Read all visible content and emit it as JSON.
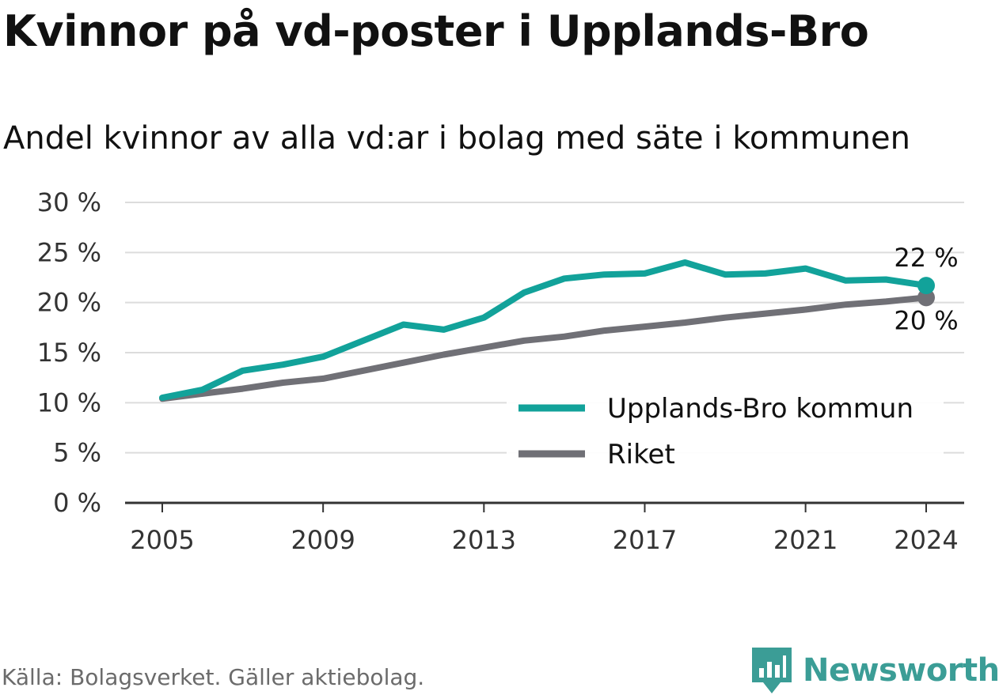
{
  "title": "Kvinnor på vd-poster i Upplands-Bro",
  "subtitle": "Andel kvinnor av alla vd:ar i bolag med säte i kommunen",
  "source": "Källa: Bolagsverket. Gäller aktiebolag.",
  "brand": {
    "name": "Newsworthy",
    "icon": "newsworthy-logo-icon",
    "color": "#3b9d96"
  },
  "chart_data": {
    "type": "line",
    "x": [
      2005,
      2006,
      2007,
      2008,
      2009,
      2010,
      2011,
      2012,
      2013,
      2014,
      2015,
      2016,
      2017,
      2018,
      2019,
      2020,
      2021,
      2022,
      2023,
      2024
    ],
    "series": [
      {
        "name": "Upplands-Bro kommun",
        "color": "#12a29a",
        "values": [
          10.5,
          11.3,
          13.2,
          13.8,
          14.6,
          16.2,
          17.8,
          17.3,
          18.5,
          21.0,
          22.4,
          22.8,
          22.9,
          24.0,
          22.8,
          22.9,
          23.4,
          22.2,
          22.3,
          21.7
        ],
        "end_label": "22 %"
      },
      {
        "name": "Riket",
        "color": "#707076",
        "values": [
          10.4,
          10.9,
          11.4,
          12.0,
          12.4,
          13.2,
          14.0,
          14.8,
          15.5,
          16.2,
          16.6,
          17.2,
          17.6,
          18.0,
          18.5,
          18.9,
          19.3,
          19.8,
          20.1,
          20.5
        ],
        "end_label": "20 %"
      }
    ],
    "x_ticks": [
      "2005",
      "2009",
      "2013",
      "2017",
      "2021",
      "2024"
    ],
    "y_ticks": [
      "0 %",
      "5 %",
      "10 %",
      "15 %",
      "20 %",
      "25 %",
      "30 %"
    ],
    "ylim": [
      0,
      30
    ],
    "xlim": [
      2005,
      2024
    ],
    "grid": true,
    "legend_position": "bottom-right"
  }
}
